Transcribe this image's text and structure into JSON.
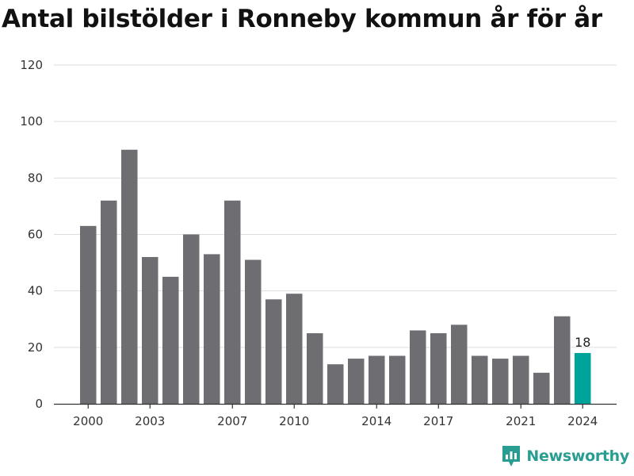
{
  "title": "Antal bilstölder i Ronneby kommun år för år",
  "brand": {
    "name": "Newsworthy",
    "icon": "newsworthy-logo-icon",
    "color": "#2a9d92"
  },
  "colors": {
    "bar": "#6e6d72",
    "highlight": "#00a399",
    "grid": "#dddddd",
    "axis": "#333333"
  },
  "chart_data": {
    "type": "bar",
    "categories": [
      "2000",
      "2001",
      "2002",
      "2003",
      "2004",
      "2005",
      "2006",
      "2007",
      "2008",
      "2009",
      "2010",
      "2011",
      "2012",
      "2013",
      "2014",
      "2015",
      "2016",
      "2017",
      "2018",
      "2019",
      "2020",
      "2021",
      "2022",
      "2023",
      "2024"
    ],
    "values": [
      63,
      72,
      90,
      52,
      45,
      60,
      53,
      72,
      51,
      37,
      39,
      25,
      14,
      16,
      17,
      17,
      26,
      25,
      28,
      17,
      16,
      17,
      11,
      31,
      18
    ],
    "x_tick_labels": [
      "2000",
      "2003",
      "2007",
      "2010",
      "2014",
      "2017",
      "2021",
      "2024"
    ],
    "y_ticks": [
      0,
      20,
      40,
      60,
      80,
      100,
      120
    ],
    "ylim": [
      0,
      120
    ],
    "highlight_category": "2024",
    "data_labels": [
      {
        "category": "2024",
        "text": "18"
      }
    ],
    "grid": true,
    "xlabel": "",
    "ylabel": ""
  }
}
